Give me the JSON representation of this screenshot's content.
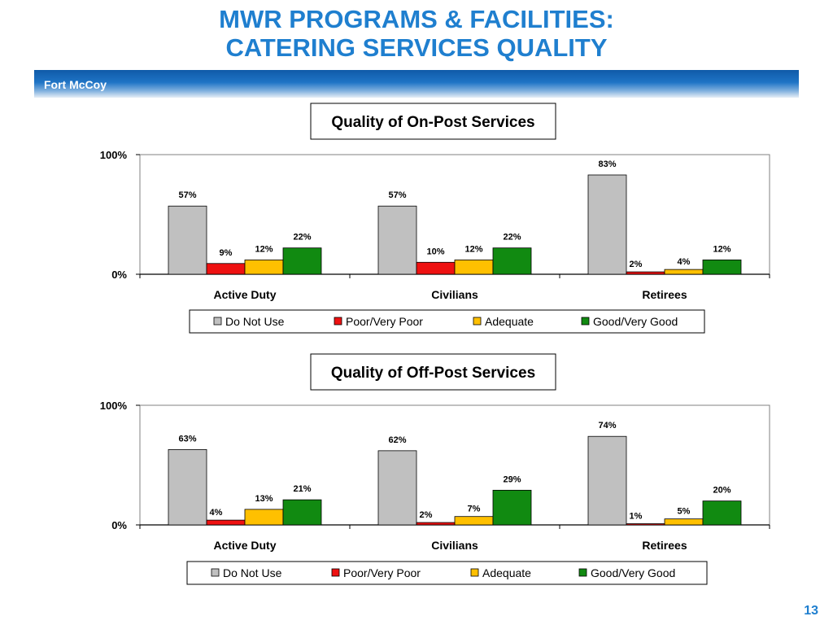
{
  "header": {
    "title_line1": "MWR PROGRAMS & FACILITIES:",
    "title_line2": "CATERING SERVICES QUALITY",
    "subtitle": "Fort McCoy"
  },
  "footer": {
    "page_number": "13"
  },
  "chart_data": [
    {
      "type": "bar",
      "title": "Quality of On-Post Services",
      "categories": [
        "Active Duty",
        "Civilians",
        "Retirees"
      ],
      "ylim": [
        0,
        100
      ],
      "yticks": [
        "0%",
        "100%"
      ],
      "series": [
        {
          "name": "Do Not Use",
          "color": "#c0c0c0",
          "values": [
            57,
            57,
            83
          ]
        },
        {
          "name": "Poor/Very Poor",
          "color": "#ee1111",
          "values": [
            9,
            10,
            2
          ]
        },
        {
          "name": "Adequate",
          "color": "#ffc000",
          "values": [
            12,
            12,
            4
          ]
        },
        {
          "name": "Good/Very Good",
          "color": "#118a11",
          "values": [
            22,
            22,
            12
          ]
        }
      ],
      "legend": "bottom"
    },
    {
      "type": "bar",
      "title": "Quality of Off-Post Services",
      "categories": [
        "Active Duty",
        "Civilians",
        "Retirees"
      ],
      "ylim": [
        0,
        100
      ],
      "yticks": [
        "0%",
        "100%"
      ],
      "series": [
        {
          "name": "Do Not Use",
          "color": "#c0c0c0",
          "values": [
            63,
            62,
            74
          ]
        },
        {
          "name": "Poor/Very Poor",
          "color": "#ee1111",
          "values": [
            4,
            2,
            1
          ]
        },
        {
          "name": "Adequate",
          "color": "#ffc000",
          "values": [
            13,
            7,
            5
          ]
        },
        {
          "name": "Good/Very Good",
          "color": "#118a11",
          "values": [
            21,
            29,
            20
          ]
        }
      ],
      "legend": "bottom"
    }
  ]
}
